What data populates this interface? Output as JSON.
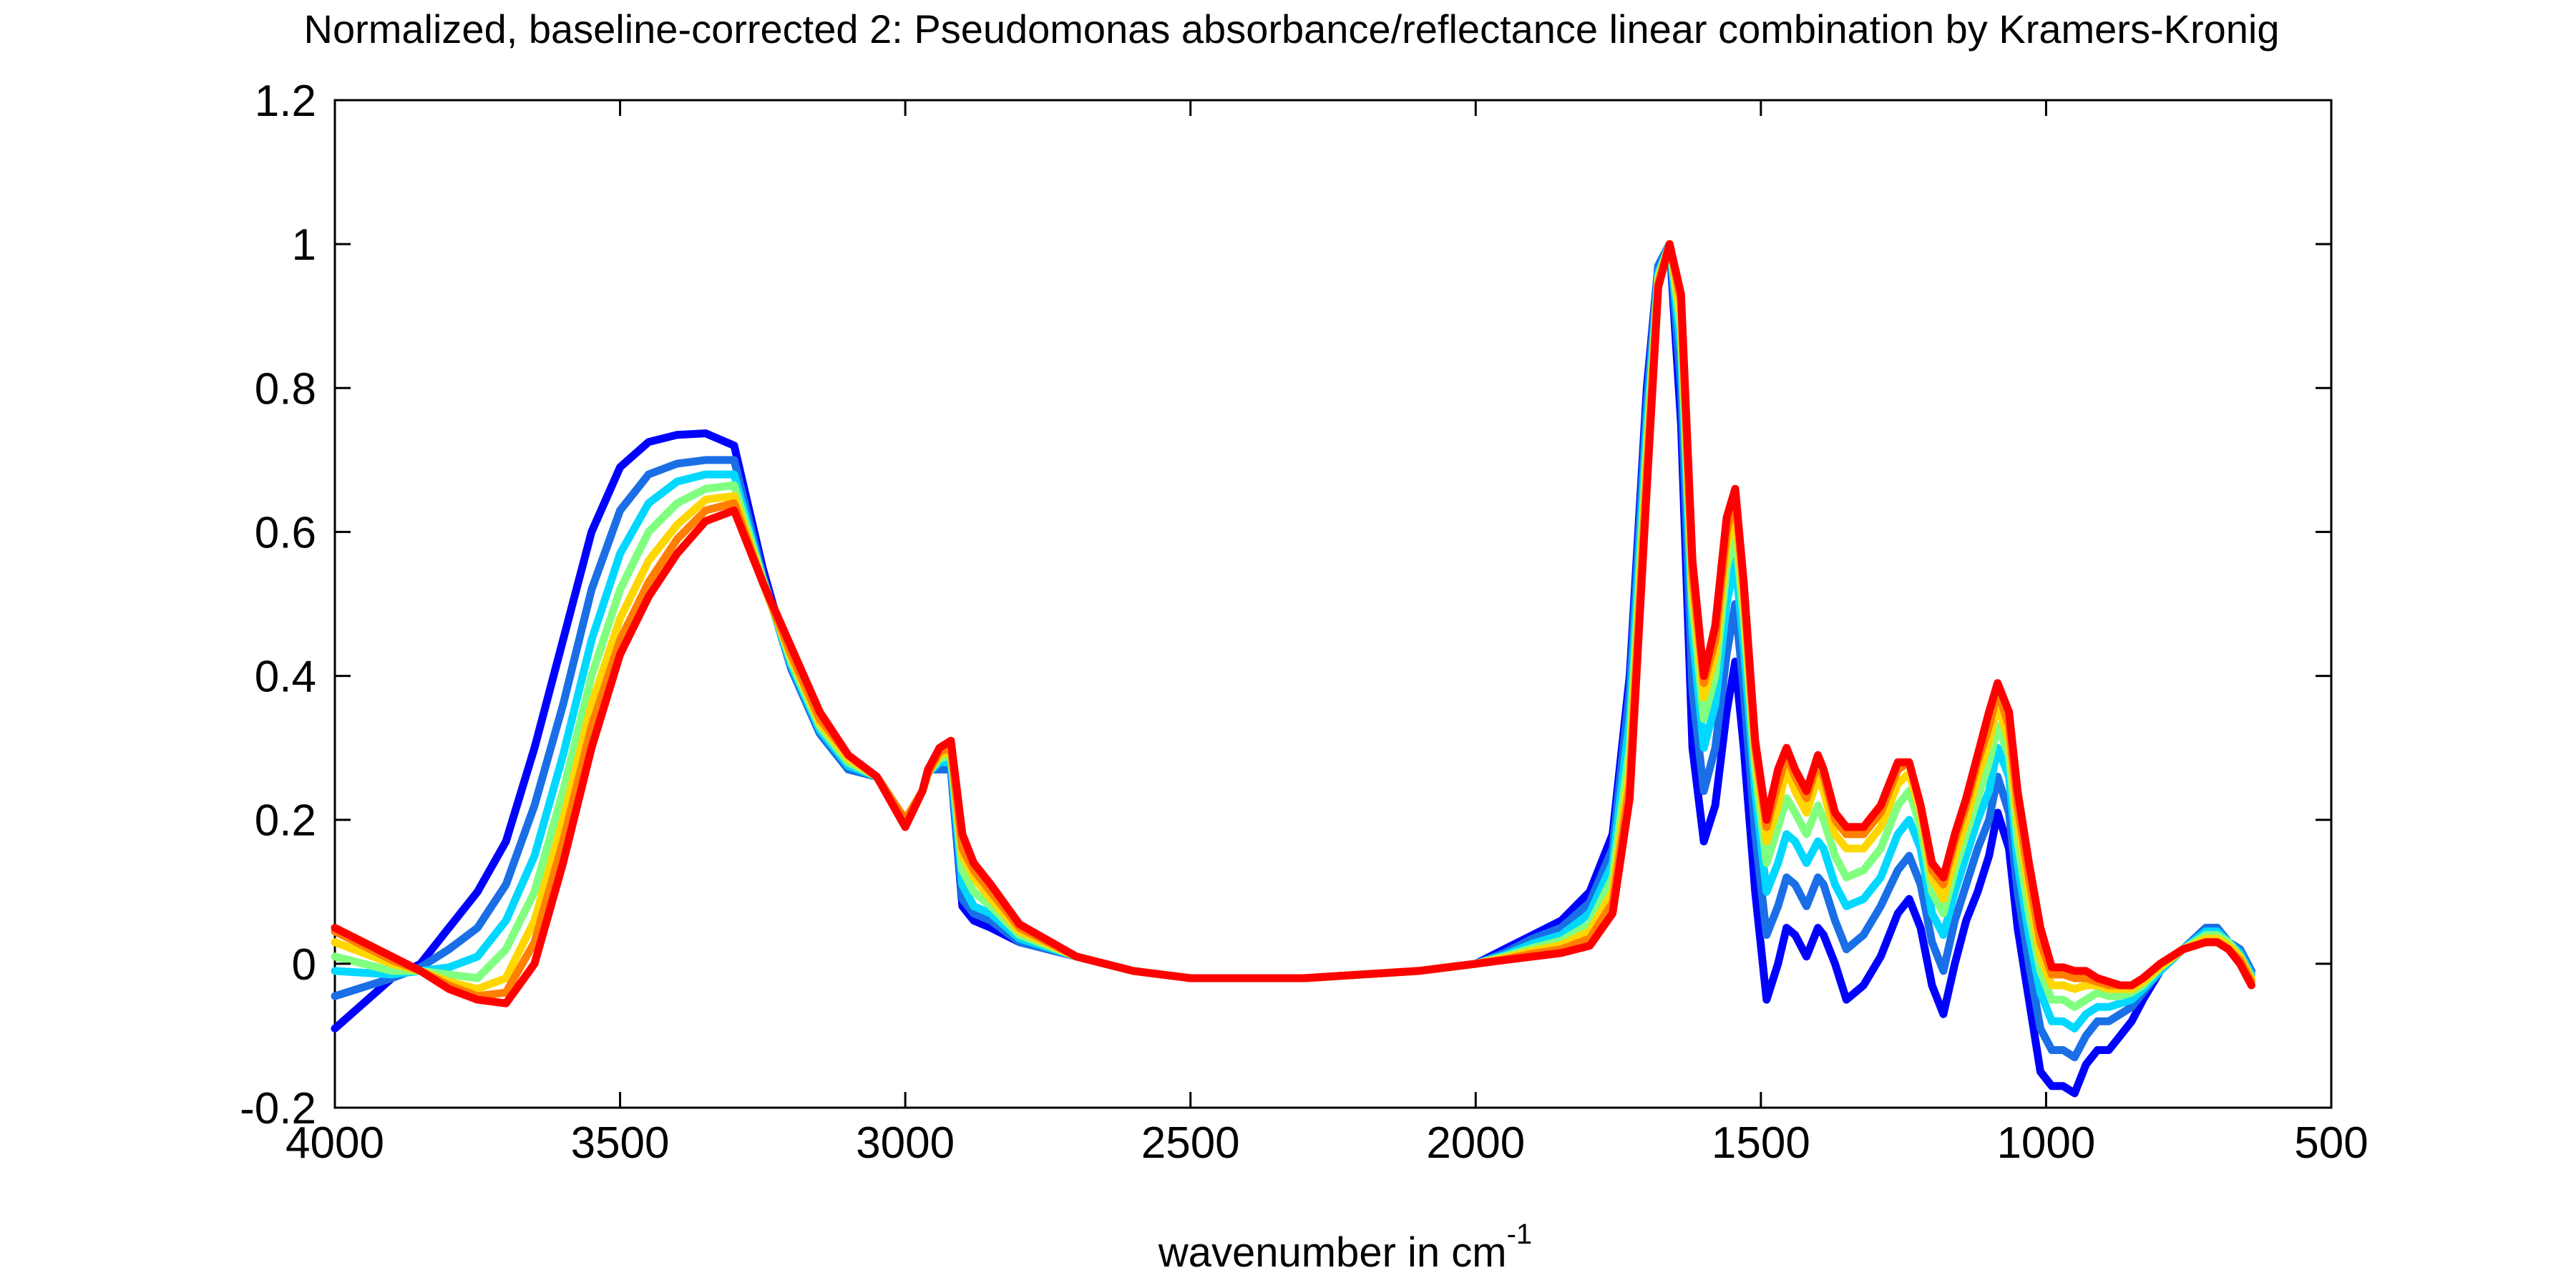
{
  "chart_data": {
    "type": "line",
    "title": "Normalized, baseline-corrected 2: Pseudomonas absorbance/reflectance linear combination by Kramers-Kronig",
    "xlabel_main": "wavenumber in cm",
    "xlabel_sup": "-1",
    "ylabel": "",
    "xlim": [
      4000,
      500
    ],
    "ylim": [
      -0.2,
      1.2
    ],
    "x_reversed": true,
    "grid": false,
    "legend": "none",
    "x_ticks": [
      4000,
      3500,
      3000,
      2500,
      2000,
      1500,
      1000,
      500
    ],
    "x_tick_labels": [
      "4000",
      "3500",
      "3000",
      "2500",
      "2000",
      "1500",
      "1000",
      "500"
    ],
    "y_ticks": [
      -0.2,
      0,
      0.2,
      0.4,
      0.6,
      0.8,
      1,
      1.2
    ],
    "y_tick_labels": [
      "-0.2",
      "0",
      "0.2",
      "0.4",
      "0.6",
      "0.8",
      "1",
      "1.2"
    ],
    "x": [
      4000,
      3900,
      3850,
      3800,
      3750,
      3700,
      3650,
      3600,
      3550,
      3500,
      3450,
      3400,
      3350,
      3300,
      3250,
      3200,
      3150,
      3100,
      3050,
      3000,
      2970,
      2960,
      2940,
      2920,
      2900,
      2880,
      2850,
      2800,
      2700,
      2600,
      2500,
      2400,
      2300,
      2200,
      2100,
      2000,
      1950,
      1900,
      1850,
      1800,
      1760,
      1730,
      1700,
      1680,
      1660,
      1640,
      1620,
      1600,
      1580,
      1560,
      1545,
      1530,
      1510,
      1490,
      1470,
      1455,
      1440,
      1420,
      1400,
      1390,
      1370,
      1350,
      1320,
      1290,
      1260,
      1240,
      1220,
      1200,
      1180,
      1160,
      1140,
      1120,
      1100,
      1085,
      1065,
      1050,
      1030,
      1010,
      990,
      970,
      950,
      930,
      910,
      890,
      870,
      850,
      830,
      800,
      760,
      720,
      700,
      680,
      660,
      640
    ],
    "series": [
      {
        "color": "#0000ff",
        "values": [
          -0.09,
          -0.02,
          0.0,
          0.05,
          0.1,
          0.17,
          0.3,
          0.45,
          0.6,
          0.69,
          0.725,
          0.735,
          0.737,
          0.72,
          0.55,
          0.41,
          0.32,
          0.27,
          0.26,
          0.2,
          0.24,
          0.27,
          0.27,
          0.27,
          0.08,
          0.06,
          0.05,
          0.03,
          0.01,
          -0.01,
          -0.02,
          -0.02,
          -0.02,
          -0.015,
          -0.01,
          0.0,
          0.02,
          0.04,
          0.06,
          0.1,
          0.18,
          0.4,
          0.8,
          0.97,
          1.0,
          0.75,
          0.3,
          0.17,
          0.22,
          0.35,
          0.42,
          0.3,
          0.1,
          -0.05,
          0.0,
          0.05,
          0.04,
          0.01,
          0.05,
          0.04,
          0.0,
          -0.05,
          -0.03,
          0.01,
          0.07,
          0.09,
          0.05,
          -0.03,
          -0.07,
          0.0,
          0.06,
          0.1,
          0.15,
          0.21,
          0.16,
          0.05,
          -0.05,
          -0.15,
          -0.17,
          -0.17,
          -0.18,
          -0.14,
          -0.12,
          -0.12,
          -0.1,
          -0.08,
          -0.05,
          -0.01,
          0.02,
          0.05,
          0.05,
          0.03,
          0.02,
          -0.01
        ]
      },
      {
        "color": "#1a6fe6",
        "values": [
          -0.045,
          -0.02,
          -0.005,
          0.02,
          0.05,
          0.11,
          0.22,
          0.36,
          0.52,
          0.63,
          0.68,
          0.695,
          0.7,
          0.7,
          0.54,
          0.41,
          0.32,
          0.27,
          0.26,
          0.2,
          0.24,
          0.27,
          0.27,
          0.27,
          0.09,
          0.07,
          0.06,
          0.03,
          0.01,
          -0.01,
          -0.02,
          -0.02,
          -0.02,
          -0.015,
          -0.01,
          0.0,
          0.015,
          0.035,
          0.05,
          0.085,
          0.16,
          0.38,
          0.78,
          0.97,
          1.0,
          0.8,
          0.38,
          0.24,
          0.3,
          0.43,
          0.5,
          0.38,
          0.18,
          0.04,
          0.08,
          0.12,
          0.11,
          0.08,
          0.12,
          0.11,
          0.06,
          0.02,
          0.04,
          0.08,
          0.13,
          0.15,
          0.11,
          0.03,
          -0.01,
          0.06,
          0.11,
          0.16,
          0.2,
          0.26,
          0.21,
          0.1,
          0.0,
          -0.09,
          -0.12,
          -0.12,
          -0.13,
          -0.1,
          -0.08,
          -0.08,
          -0.07,
          -0.06,
          -0.04,
          -0.01,
          0.02,
          0.05,
          0.05,
          0.03,
          0.02,
          -0.01
        ]
      },
      {
        "color": "#00d8ff",
        "values": [
          -0.01,
          -0.015,
          -0.01,
          -0.005,
          0.01,
          0.06,
          0.15,
          0.29,
          0.45,
          0.57,
          0.64,
          0.67,
          0.68,
          0.68,
          0.535,
          0.415,
          0.325,
          0.275,
          0.26,
          0.2,
          0.24,
          0.265,
          0.28,
          0.28,
          0.11,
          0.08,
          0.07,
          0.035,
          0.01,
          -0.01,
          -0.02,
          -0.02,
          -0.02,
          -0.015,
          -0.01,
          0.0,
          0.012,
          0.028,
          0.04,
          0.07,
          0.14,
          0.34,
          0.75,
          0.96,
          1.0,
          0.85,
          0.46,
          0.3,
          0.36,
          0.5,
          0.56,
          0.44,
          0.24,
          0.1,
          0.14,
          0.18,
          0.17,
          0.14,
          0.17,
          0.16,
          0.11,
          0.08,
          0.09,
          0.12,
          0.18,
          0.2,
          0.16,
          0.07,
          0.04,
          0.1,
          0.15,
          0.2,
          0.24,
          0.3,
          0.26,
          0.14,
          0.04,
          -0.04,
          -0.08,
          -0.08,
          -0.09,
          -0.07,
          -0.06,
          -0.06,
          -0.055,
          -0.05,
          -0.035,
          -0.01,
          0.02,
          0.045,
          0.045,
          0.03,
          0.015,
          -0.015
        ]
      },
      {
        "color": "#80ff80",
        "values": [
          0.01,
          -0.01,
          -0.01,
          -0.015,
          -0.02,
          0.02,
          0.1,
          0.24,
          0.4,
          0.52,
          0.6,
          0.64,
          0.66,
          0.665,
          0.535,
          0.42,
          0.33,
          0.28,
          0.26,
          0.2,
          0.24,
          0.265,
          0.285,
          0.29,
          0.13,
          0.1,
          0.08,
          0.04,
          0.01,
          -0.01,
          -0.02,
          -0.02,
          -0.02,
          -0.015,
          -0.01,
          0.0,
          0.01,
          0.022,
          0.032,
          0.055,
          0.12,
          0.3,
          0.72,
          0.955,
          1.0,
          0.88,
          0.5,
          0.34,
          0.4,
          0.55,
          0.6,
          0.48,
          0.27,
          0.14,
          0.19,
          0.23,
          0.21,
          0.18,
          0.22,
          0.2,
          0.15,
          0.12,
          0.13,
          0.16,
          0.22,
          0.24,
          0.19,
          0.1,
          0.07,
          0.13,
          0.18,
          0.23,
          0.28,
          0.33,
          0.29,
          0.17,
          0.07,
          -0.01,
          -0.05,
          -0.05,
          -0.06,
          -0.05,
          -0.04,
          -0.045,
          -0.045,
          -0.04,
          -0.03,
          -0.005,
          0.02,
          0.04,
          0.04,
          0.03,
          0.01,
          -0.02
        ]
      },
      {
        "color": "#ffd700",
        "values": [
          0.03,
          0.0,
          -0.01,
          -0.025,
          -0.035,
          -0.02,
          0.06,
          0.2,
          0.36,
          0.48,
          0.56,
          0.61,
          0.645,
          0.65,
          0.53,
          0.425,
          0.335,
          0.285,
          0.26,
          0.2,
          0.24,
          0.265,
          0.29,
          0.295,
          0.15,
          0.12,
          0.09,
          0.045,
          0.01,
          -0.01,
          -0.02,
          -0.02,
          -0.02,
          -0.015,
          -0.01,
          0.0,
          0.008,
          0.018,
          0.026,
          0.045,
          0.1,
          0.27,
          0.7,
          0.95,
          1.0,
          0.9,
          0.52,
          0.37,
          0.43,
          0.58,
          0.63,
          0.5,
          0.29,
          0.17,
          0.22,
          0.27,
          0.24,
          0.21,
          0.26,
          0.24,
          0.18,
          0.16,
          0.16,
          0.19,
          0.25,
          0.265,
          0.21,
          0.12,
          0.09,
          0.15,
          0.2,
          0.26,
          0.31,
          0.36,
          0.31,
          0.2,
          0.1,
          0.01,
          -0.03,
          -0.03,
          -0.035,
          -0.03,
          -0.03,
          -0.035,
          -0.035,
          -0.035,
          -0.025,
          -0.005,
          0.02,
          0.035,
          0.035,
          0.025,
          0.01,
          -0.02
        ]
      },
      {
        "color": "#ff7f00",
        "values": [
          0.045,
          0.005,
          -0.01,
          -0.03,
          -0.045,
          -0.04,
          0.03,
          0.17,
          0.33,
          0.45,
          0.53,
          0.59,
          0.63,
          0.64,
          0.53,
          0.43,
          0.34,
          0.29,
          0.26,
          0.2,
          0.24,
          0.265,
          0.295,
          0.3,
          0.16,
          0.13,
          0.1,
          0.05,
          0.01,
          -0.01,
          -0.02,
          -0.02,
          -0.02,
          -0.015,
          -0.01,
          0.0,
          0.006,
          0.014,
          0.02,
          0.035,
          0.085,
          0.25,
          0.68,
          0.945,
          1.0,
          0.92,
          0.54,
          0.39,
          0.45,
          0.6,
          0.65,
          0.52,
          0.3,
          0.19,
          0.25,
          0.29,
          0.26,
          0.23,
          0.28,
          0.26,
          0.2,
          0.18,
          0.18,
          0.21,
          0.27,
          0.28,
          0.22,
          0.13,
          0.11,
          0.17,
          0.22,
          0.28,
          0.33,
          0.38,
          0.33,
          0.22,
          0.12,
          0.03,
          -0.015,
          -0.015,
          -0.02,
          -0.02,
          -0.025,
          -0.03,
          -0.03,
          -0.03,
          -0.02,
          0.0,
          0.02,
          0.03,
          0.03,
          0.02,
          0.005,
          -0.025
        ]
      },
      {
        "color": "#ff0000",
        "values": [
          0.05,
          0.01,
          -0.01,
          -0.035,
          -0.05,
          -0.055,
          0.0,
          0.14,
          0.3,
          0.43,
          0.51,
          0.57,
          0.615,
          0.63,
          0.53,
          0.44,
          0.35,
          0.29,
          0.26,
          0.19,
          0.24,
          0.27,
          0.3,
          0.31,
          0.18,
          0.14,
          0.11,
          0.055,
          0.01,
          -0.01,
          -0.02,
          -0.02,
          -0.02,
          -0.015,
          -0.01,
          0.0,
          0.005,
          0.01,
          0.015,
          0.025,
          0.07,
          0.23,
          0.66,
          0.94,
          1.0,
          0.93,
          0.56,
          0.4,
          0.47,
          0.62,
          0.66,
          0.53,
          0.31,
          0.2,
          0.27,
          0.3,
          0.27,
          0.24,
          0.29,
          0.27,
          0.21,
          0.19,
          0.19,
          0.22,
          0.28,
          0.28,
          0.22,
          0.14,
          0.12,
          0.18,
          0.23,
          0.29,
          0.35,
          0.39,
          0.35,
          0.24,
          0.14,
          0.05,
          -0.005,
          -0.005,
          -0.01,
          -0.01,
          -0.02,
          -0.025,
          -0.03,
          -0.03,
          -0.02,
          0.0,
          0.02,
          0.03,
          0.03,
          0.02,
          0.0,
          -0.03
        ]
      }
    ]
  }
}
